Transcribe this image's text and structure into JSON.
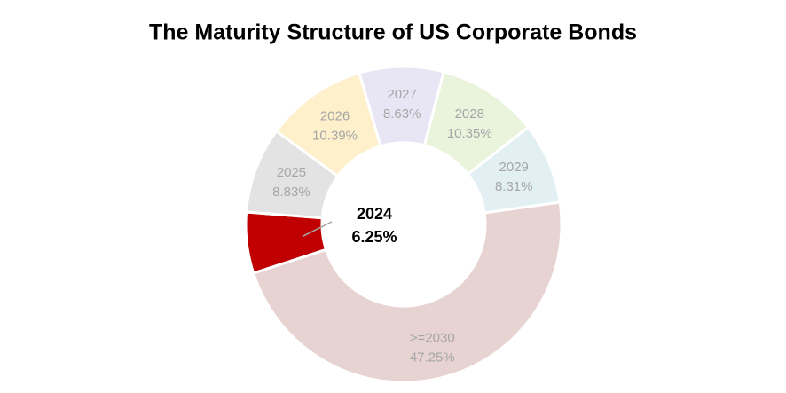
{
  "chart_data": {
    "type": "donut",
    "title": "The Maturity Structure of US Corporate Bonds",
    "categories": [
      "2024",
      "2025",
      "2026",
      "2027",
      "2028",
      "2029",
      ">=2030"
    ],
    "values": [
      6.25,
      8.83,
      10.39,
      8.63,
      10.35,
      8.31,
      47.25
    ],
    "value_labels": [
      "6.25%",
      "8.83%",
      "10.39%",
      "8.63%",
      "10.35%",
      "8.31%",
      "47.25%"
    ],
    "colors": [
      "#c00000",
      "#e3e3e3",
      "#fff0cc",
      "#e8e6f5",
      "#eaf3dc",
      "#e2f0f3",
      "#e8d3d3"
    ]
  }
}
